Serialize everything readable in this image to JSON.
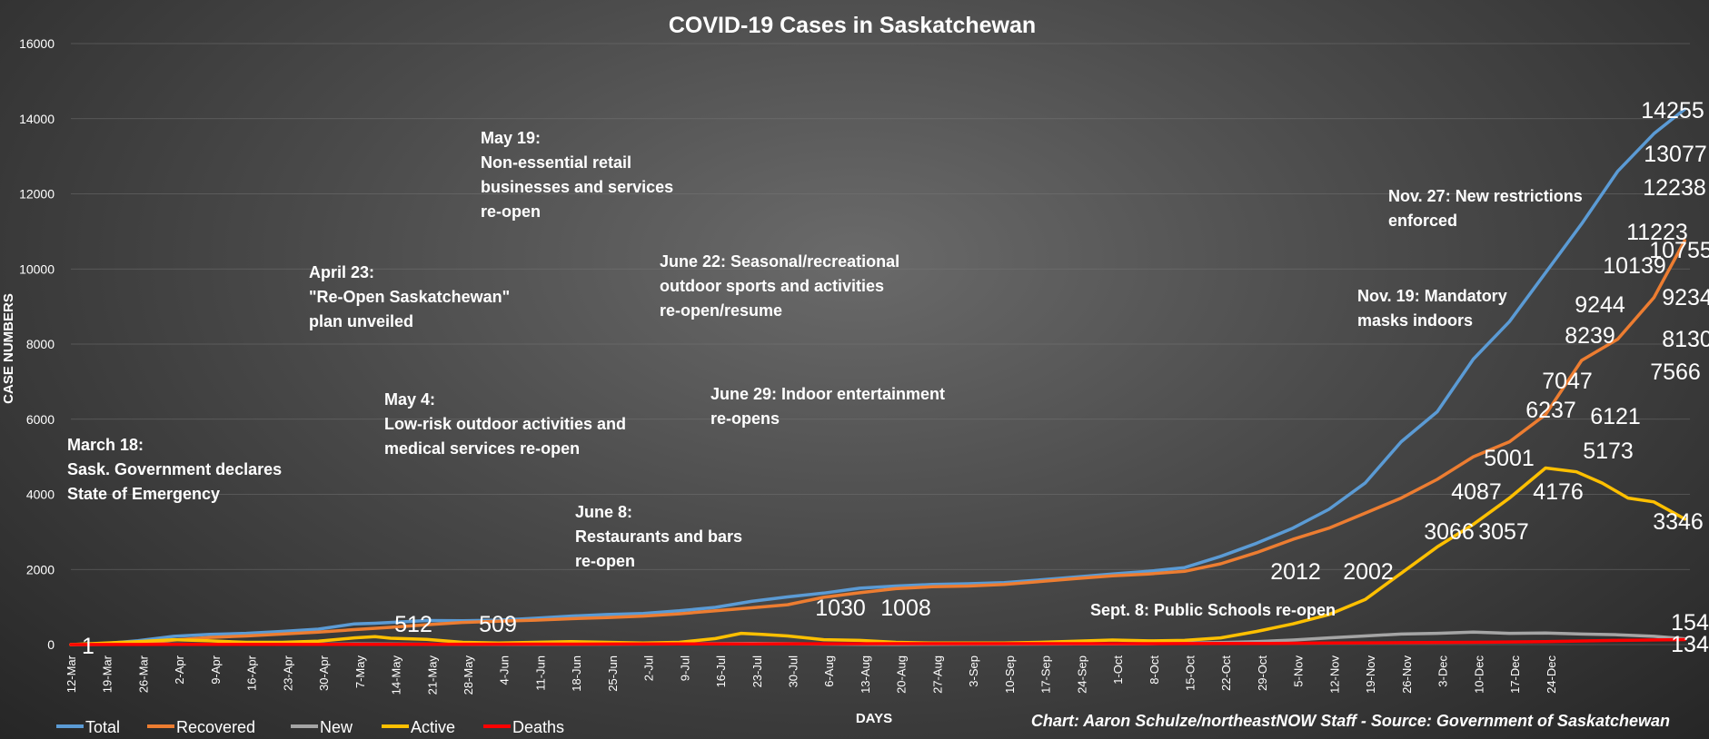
{
  "chart_data": {
    "type": "line",
    "title": "COVID-19 Cases in Saskatchewan",
    "xlabel": "DAYS",
    "ylabel": "CASE NUMBERS",
    "ylim": [
      0,
      16000
    ],
    "yticks": [
      0,
      2000,
      4000,
      6000,
      8000,
      10000,
      12000,
      14000,
      16000
    ],
    "grid": true,
    "legend_position": "bottom-left",
    "credit": "Chart: Aaron Schulze/northeastNOW Staff - Source: Government of Saskatchewan",
    "x_tick_labels": [
      "12-Mar",
      "19-Mar",
      "26-Mar",
      "2-Apr",
      "9-Apr",
      "16-Apr",
      "23-Apr",
      "30-Apr",
      "7-May",
      "14-May",
      "21-May",
      "28-May",
      "4-Jun",
      "11-Jun",
      "18-Jun",
      "25-Jun",
      "2-Jul",
      "9-Jul",
      "16-Jul",
      "23-Jul",
      "30-Jul",
      "6-Aug",
      "13-Aug",
      "20-Aug",
      "27-Aug",
      "3-Sep",
      "10-Sep",
      "17-Sep",
      "24-Sep",
      "1-Oct",
      "8-Oct",
      "15-Oct",
      "22-Oct",
      "29-Oct",
      "5-Nov",
      "12-Nov",
      "19-Nov",
      "26-Nov",
      "3-Dec",
      "10-Dec",
      "17-Dec",
      "24-Dec"
    ],
    "series": [
      {
        "name": "Total",
        "color": "#5b9bd5",
        "points": [
          [
            0,
            1
          ],
          [
            6,
            20
          ],
          [
            13,
            105
          ],
          [
            20,
            220
          ],
          [
            27,
            270
          ],
          [
            34,
            300
          ],
          [
            41,
            350
          ],
          [
            48,
            410
          ],
          [
            55,
            550
          ],
          [
            59,
            568
          ],
          [
            62,
            590
          ],
          [
            69,
            640
          ],
          [
            76,
            634
          ],
          [
            83,
            650
          ],
          [
            90,
            700
          ],
          [
            97,
            760
          ],
          [
            104,
            800
          ],
          [
            111,
            830
          ],
          [
            118,
            900
          ],
          [
            125,
            990
          ],
          [
            132,
            1150
          ],
          [
            139,
            1270
          ],
          [
            146,
            1370
          ],
          [
            153,
            1500
          ],
          [
            160,
            1560
          ],
          [
            167,
            1600
          ],
          [
            174,
            1620
          ],
          [
            181,
            1650
          ],
          [
            188,
            1720
          ],
          [
            195,
            1800
          ],
          [
            202,
            1880
          ],
          [
            209,
            1950
          ],
          [
            216,
            2050
          ],
          [
            223,
            2350
          ],
          [
            230,
            2700
          ],
          [
            237,
            3100
          ],
          [
            244,
            3600
          ],
          [
            251,
            4300
          ],
          [
            258,
            5400
          ],
          [
            265,
            6200
          ],
          [
            272,
            7600
          ],
          [
            279,
            8600
          ],
          [
            286,
            9900
          ],
          [
            293,
            11200
          ],
          [
            300,
            12600
          ],
          [
            307,
            13600
          ],
          [
            313,
            14255
          ]
        ]
      },
      {
        "name": "Recovered",
        "color": "#ed7d31",
        "points": [
          [
            0,
            0
          ],
          [
            13,
            20
          ],
          [
            20,
            120
          ],
          [
            27,
            190
          ],
          [
            34,
            230
          ],
          [
            41,
            280
          ],
          [
            48,
            330
          ],
          [
            55,
            400
          ],
          [
            62,
            460
          ],
          [
            69,
            530
          ],
          [
            76,
            590
          ],
          [
            83,
            620
          ],
          [
            90,
            650
          ],
          [
            97,
            690
          ],
          [
            104,
            720
          ],
          [
            111,
            760
          ],
          [
            118,
            820
          ],
          [
            125,
            900
          ],
          [
            132,
            980
          ],
          [
            139,
            1060
          ],
          [
            146,
            1260
          ],
          [
            153,
            1380
          ],
          [
            160,
            1490
          ],
          [
            167,
            1540
          ],
          [
            174,
            1560
          ],
          [
            181,
            1600
          ],
          [
            188,
            1680
          ],
          [
            195,
            1760
          ],
          [
            202,
            1830
          ],
          [
            209,
            1880
          ],
          [
            216,
            1950
          ],
          [
            223,
            2150
          ],
          [
            230,
            2450
          ],
          [
            237,
            2800
          ],
          [
            244,
            3100
          ],
          [
            251,
            3500
          ],
          [
            258,
            3900
          ],
          [
            265,
            4400
          ],
          [
            272,
            5000
          ],
          [
            279,
            5400
          ],
          [
            286,
            6121
          ],
          [
            293,
            7566
          ],
          [
            300,
            8130
          ],
          [
            307,
            9234
          ],
          [
            313,
            10755
          ]
        ]
      },
      {
        "name": "New",
        "color": "#a5a5a5",
        "points": [
          [
            0,
            1
          ],
          [
            13,
            10
          ],
          [
            20,
            12
          ],
          [
            27,
            8
          ],
          [
            34,
            10
          ],
          [
            41,
            8
          ],
          [
            48,
            12
          ],
          [
            55,
            18
          ],
          [
            62,
            15
          ],
          [
            69,
            10
          ],
          [
            76,
            8
          ],
          [
            83,
            5
          ],
          [
            90,
            8
          ],
          [
            97,
            10
          ],
          [
            104,
            12
          ],
          [
            111,
            15
          ],
          [
            118,
            20
          ],
          [
            125,
            25
          ],
          [
            132,
            30
          ],
          [
            139,
            25
          ],
          [
            146,
            15
          ],
          [
            153,
            10
          ],
          [
            160,
            8
          ],
          [
            167,
            10
          ],
          [
            174,
            12
          ],
          [
            181,
            12
          ],
          [
            188,
            15
          ],
          [
            195,
            18
          ],
          [
            202,
            20
          ],
          [
            209,
            25
          ],
          [
            216,
            40
          ],
          [
            223,
            55
          ],
          [
            230,
            80
          ],
          [
            237,
            120
          ],
          [
            244,
            180
          ],
          [
            251,
            230
          ],
          [
            258,
            280
          ],
          [
            265,
            300
          ],
          [
            272,
            330
          ],
          [
            279,
            300
          ],
          [
            286,
            310
          ],
          [
            293,
            280
          ],
          [
            300,
            260
          ],
          [
            307,
            220
          ],
          [
            313,
            154
          ]
        ]
      },
      {
        "name": "Active",
        "color": "#ffc000",
        "points": [
          [
            0,
            1
          ],
          [
            13,
            80
          ],
          [
            20,
            130
          ],
          [
            27,
            100
          ],
          [
            34,
            60
          ],
          [
            41,
            60
          ],
          [
            48,
            90
          ],
          [
            55,
            180
          ],
          [
            59,
            210
          ],
          [
            62,
            170
          ],
          [
            69,
            140
          ],
          [
            76,
            60
          ],
          [
            83,
            40
          ],
          [
            90,
            60
          ],
          [
            97,
            80
          ],
          [
            104,
            60
          ],
          [
            111,
            40
          ],
          [
            118,
            60
          ],
          [
            125,
            160
          ],
          [
            130,
            300
          ],
          [
            134,
            270
          ],
          [
            139,
            230
          ],
          [
            146,
            130
          ],
          [
            153,
            110
          ],
          [
            160,
            60
          ],
          [
            167,
            40
          ],
          [
            174,
            40
          ],
          [
            181,
            40
          ],
          [
            188,
            60
          ],
          [
            195,
            90
          ],
          [
            202,
            120
          ],
          [
            209,
            100
          ],
          [
            216,
            110
          ],
          [
            223,
            180
          ],
          [
            230,
            350
          ],
          [
            237,
            550
          ],
          [
            244,
            800
          ],
          [
            251,
            1200
          ],
          [
            258,
            1900
          ],
          [
            265,
            2600
          ],
          [
            272,
            3200
          ],
          [
            279,
            3900
          ],
          [
            286,
            4700
          ],
          [
            292,
            4600
          ],
          [
            297,
            4300
          ],
          [
            302,
            3900
          ],
          [
            307,
            3800
          ],
          [
            313,
            3346
          ]
        ]
      },
      {
        "name": "Deaths",
        "color": "#ff0000",
        "points": [
          [
            0,
            0
          ],
          [
            13,
            3
          ],
          [
            20,
            4
          ],
          [
            34,
            5
          ],
          [
            48,
            6
          ],
          [
            62,
            8
          ],
          [
            76,
            10
          ],
          [
            90,
            13
          ],
          [
            104,
            15
          ],
          [
            118,
            16
          ],
          [
            132,
            20
          ],
          [
            146,
            21
          ],
          [
            160,
            24
          ],
          [
            174,
            24
          ],
          [
            188,
            24
          ],
          [
            202,
            25
          ],
          [
            216,
            26
          ],
          [
            230,
            30
          ],
          [
            244,
            40
          ],
          [
            258,
            50
          ],
          [
            272,
            60
          ],
          [
            286,
            80
          ],
          [
            300,
            110
          ],
          [
            313,
            134
          ]
        ]
      }
    ],
    "data_labels": [
      {
        "series": "Total",
        "text": "1"
      },
      {
        "series": "Total",
        "text": "512"
      },
      {
        "series": "Total",
        "text": "509"
      },
      {
        "series": "Total",
        "text": "1030"
      },
      {
        "series": "Total",
        "text": "1008"
      },
      {
        "series": "Recovered",
        "text": "2012"
      },
      {
        "series": "Recovered",
        "text": "2002"
      },
      {
        "series": "Recovered",
        "text": "3066"
      },
      {
        "series": "Recovered",
        "text": "3057"
      },
      {
        "series": "Total",
        "text": "4087"
      },
      {
        "series": "Recovered",
        "text": "4176"
      },
      {
        "series": "Total",
        "text": "5001"
      },
      {
        "series": "Active",
        "text": "5173"
      },
      {
        "series": "Recovered",
        "text": "6121"
      },
      {
        "series": "Total",
        "text": "6237"
      },
      {
        "series": "Total",
        "text": "7047"
      },
      {
        "series": "Recovered",
        "text": "7566"
      },
      {
        "series": "Recovered",
        "text": "8130"
      },
      {
        "series": "Total",
        "text": "8239"
      },
      {
        "series": "Recovered",
        "text": "9234"
      },
      {
        "series": "Total",
        "text": "9244"
      },
      {
        "series": "Total",
        "text": "10139"
      },
      {
        "series": "Recovered",
        "text": "10755"
      },
      {
        "series": "Total",
        "text": "11223"
      },
      {
        "series": "Total",
        "text": "12238"
      },
      {
        "series": "Total",
        "text": "13077"
      },
      {
        "series": "Total",
        "text": "14255"
      },
      {
        "series": "Active",
        "text": "3346"
      },
      {
        "series": "New",
        "text": "154"
      },
      {
        "series": "Deaths",
        "text": "134"
      }
    ],
    "annotations": [
      {
        "lines": [
          "March 18:",
          "Sask. Government declares",
          "State of Emergency"
        ]
      },
      {
        "lines": [
          "April 23:",
          "\"Re-Open Saskatchewan\"",
          "plan unveiled"
        ]
      },
      {
        "lines": [
          "May 4:",
          "Low-risk outdoor activities and",
          "medical services re-open"
        ]
      },
      {
        "lines": [
          "May 19:",
          "Non-essential retail",
          "businesses and services",
          "re-open"
        ]
      },
      {
        "lines": [
          "June 8:",
          "Restaurants and bars",
          "re-open"
        ]
      },
      {
        "lines": [
          "June 22: Seasonal/recreational",
          "outdoor sports and activities",
          "re-open/resume"
        ]
      },
      {
        "lines": [
          "June 29: Indoor entertainment",
          "re-opens"
        ]
      },
      {
        "lines": [
          "Sept. 8: Public Schools re-open"
        ]
      },
      {
        "lines": [
          "Nov. 19: Mandatory",
          "masks indoors"
        ]
      },
      {
        "lines": [
          "Nov. 27: New restrictions",
          "enforced"
        ]
      }
    ]
  }
}
